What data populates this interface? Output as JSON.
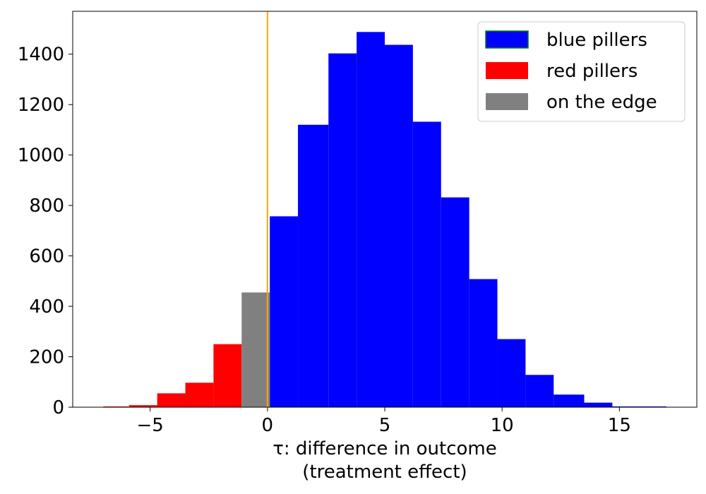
{
  "chart_data": {
    "type": "bar",
    "title": "",
    "xlabel_line1": "τ: difference in outcome",
    "xlabel_line2": "(treatment effect)",
    "ylabel": "",
    "xlim": [
      -8.3,
      18.3
    ],
    "ylim": [
      0,
      1570
    ],
    "xticks": [
      -5,
      0,
      5,
      10,
      15
    ],
    "xtick_labels": [
      "−5",
      "0",
      "5",
      "10",
      "15"
    ],
    "yticks": [
      0,
      200,
      400,
      600,
      800,
      1000,
      1200,
      1400
    ],
    "yticks_labels": [
      "0",
      "200",
      "400",
      "600",
      "800",
      "1000",
      "1200",
      "1400"
    ],
    "vline_x": 0,
    "vline_color": "#FFA500",
    "grid": false,
    "legend_position": "top-right",
    "series": [
      {
        "name": "blue pillers",
        "color": "#0000FF",
        "legend_edge": "#008000",
        "bins": [
          {
            "x0": 0.1,
            "x1": 1.3,
            "y": 757
          },
          {
            "x0": 1.3,
            "x1": 2.6,
            "y": 1120
          },
          {
            "x0": 2.6,
            "x1": 3.8,
            "y": 1403
          },
          {
            "x0": 3.8,
            "x1": 5.0,
            "y": 1488
          },
          {
            "x0": 5.0,
            "x1": 6.2,
            "y": 1437
          },
          {
            "x0": 6.2,
            "x1": 7.4,
            "y": 1132
          },
          {
            "x0": 7.4,
            "x1": 8.6,
            "y": 832
          },
          {
            "x0": 8.6,
            "x1": 9.8,
            "y": 508
          },
          {
            "x0": 9.8,
            "x1": 11.0,
            "y": 270
          },
          {
            "x0": 11.0,
            "x1": 12.2,
            "y": 128
          },
          {
            "x0": 12.2,
            "x1": 13.5,
            "y": 50
          },
          {
            "x0": 13.5,
            "x1": 14.7,
            "y": 18
          },
          {
            "x0": 14.7,
            "x1": 15.9,
            "y": 3
          },
          {
            "x0": 15.9,
            "x1": 17.0,
            "y": 3
          }
        ]
      },
      {
        "name": "red pillers",
        "color": "#FF0000",
        "bins": [
          {
            "x0": -7.0,
            "x1": -5.9,
            "y": 3
          },
          {
            "x0": -5.9,
            "x1": -4.7,
            "y": 8
          },
          {
            "x0": -4.7,
            "x1": -3.5,
            "y": 55
          },
          {
            "x0": -3.5,
            "x1": -2.3,
            "y": 97
          },
          {
            "x0": -2.3,
            "x1": -1.1,
            "y": 250
          }
        ]
      },
      {
        "name": "on the edge",
        "color": "#808080",
        "bins": [
          {
            "x0": -1.1,
            "x1": 0.1,
            "y": 455
          }
        ]
      }
    ]
  }
}
